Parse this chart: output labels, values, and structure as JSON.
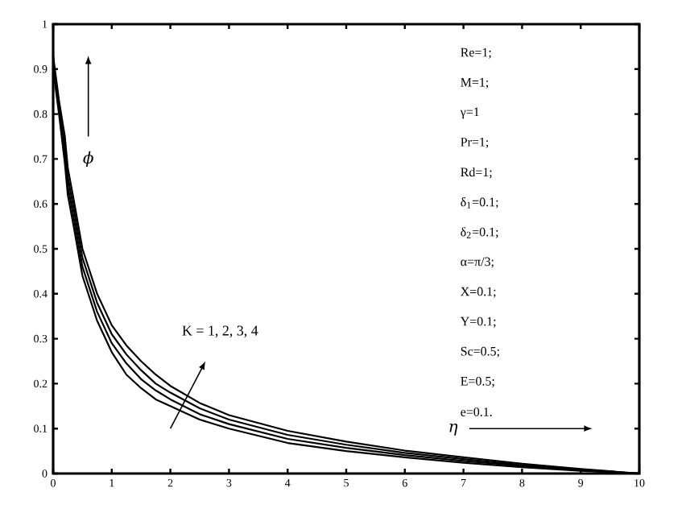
{
  "chart_data": {
    "type": "line",
    "xlabel": "η",
    "ylabel": "ϕ",
    "x": [
      0,
      0.1,
      0.2,
      0.25,
      0.35,
      0.5,
      0.75,
      1,
      1.25,
      1.5,
      1.75,
      2,
      2.5,
      3,
      4,
      5,
      6,
      7,
      8,
      9,
      10
    ],
    "series": [
      {
        "color": "#000000",
        "values": [
          0.9,
          0.8,
          0.69,
          0.62,
          0.55,
          0.44,
          0.34,
          0.27,
          0.22,
          0.19,
          0.165,
          0.15,
          0.12,
          0.1,
          0.068,
          0.05,
          0.036,
          0.024,
          0.014,
          0.006,
          0
        ]
      },
      {
        "color": "#000000",
        "values": [
          0.91,
          0.81,
          0.71,
          0.64,
          0.57,
          0.46,
          0.36,
          0.29,
          0.245,
          0.21,
          0.185,
          0.165,
          0.132,
          0.11,
          0.077,
          0.057,
          0.041,
          0.028,
          0.017,
          0.007,
          0
        ]
      },
      {
        "color": "#000000",
        "values": [
          0.92,
          0.82,
          0.73,
          0.66,
          0.59,
          0.48,
          0.38,
          0.31,
          0.265,
          0.23,
          0.2,
          0.18,
          0.145,
          0.12,
          0.086,
          0.064,
          0.046,
          0.032,
          0.019,
          0.009,
          0
        ]
      },
      {
        "color": "#000000",
        "values": [
          0.93,
          0.83,
          0.75,
          0.68,
          0.61,
          0.5,
          0.4,
          0.33,
          0.285,
          0.25,
          0.22,
          0.195,
          0.157,
          0.13,
          0.095,
          0.071,
          0.051,
          0.036,
          0.022,
          0.01,
          0
        ]
      }
    ],
    "xlim": [
      0,
      10
    ],
    "ylim": [
      0,
      1
    ],
    "xticks": [
      0,
      1,
      2,
      3,
      4,
      5,
      6,
      7,
      8,
      9,
      10
    ],
    "yticks": [
      0,
      0.1,
      0.2,
      0.3,
      0.4,
      0.5,
      0.6,
      0.7,
      0.8,
      0.9,
      1
    ],
    "annotations": [
      "K = 1, 2, 3, 4",
      "Re=1;",
      "M=1;",
      "γ=1",
      "Pr=1;",
      "Rd=1;",
      "δ$_{1}$=0.1;",
      "δ$_{2}$=0.1;",
      "α=π/3;",
      "X=0.1;",
      "Y=0.1;",
      "Sc=0.5;",
      "E=0.5;",
      "e=0.1."
    ]
  }
}
